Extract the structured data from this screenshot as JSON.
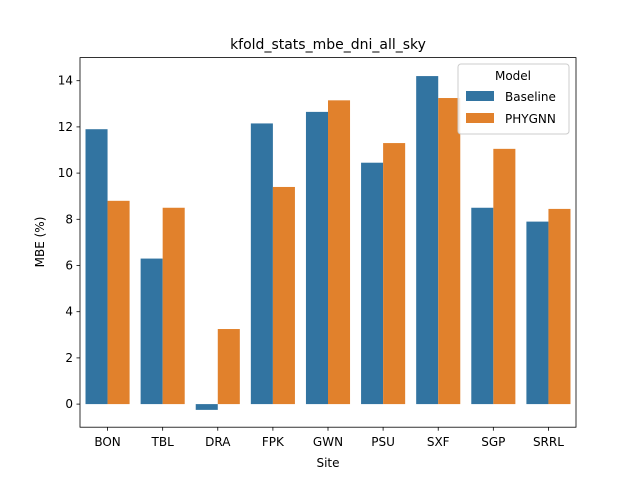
{
  "chart_data": {
    "type": "bar",
    "title": "kfold_stats_mbe_dni_all_sky",
    "xlabel": "Site",
    "ylabel": "MBE (%)",
    "categories": [
      "BON",
      "TBL",
      "DRA",
      "FPK",
      "GWN",
      "PSU",
      "SXF",
      "SGP",
      "SRRL"
    ],
    "series": [
      {
        "name": "Baseline",
        "color": "#3274a1",
        "values": [
          11.9,
          6.3,
          -0.25,
          12.15,
          12.65,
          10.45,
          14.2,
          8.5,
          7.9
        ]
      },
      {
        "name": "PHYGNN",
        "color": "#e1812c",
        "values": [
          8.8,
          8.5,
          3.25,
          9.4,
          13.15,
          11.3,
          13.25,
          11.05,
          8.45
        ]
      }
    ],
    "ylim": [
      -1,
      15
    ],
    "yticks": [
      0,
      2,
      4,
      6,
      8,
      10,
      12,
      14
    ],
    "legend": {
      "title": "Model",
      "placement": "top-right"
    },
    "grid": false
  }
}
